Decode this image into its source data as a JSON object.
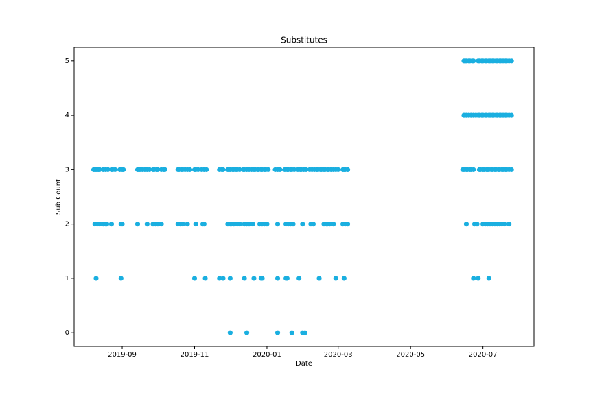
{
  "chart_data": {
    "type": "scatter",
    "title": "Substitutes",
    "x_label": "Date",
    "y_label": "Sub Count",
    "color": "#1aafe0",
    "x": [
      219,
      220,
      221,
      222,
      223,
      224,
      227,
      229,
      231,
      234,
      235,
      237,
      241,
      243,
      244,
      256,
      257,
      258,
      260,
      262,
      264,
      266,
      269,
      270,
      272,
      273,
      276,
      278,
      279,
      290,
      291,
      293,
      294,
      296,
      298,
      300,
      304,
      305,
      307,
      310,
      312,
      314,
      325,
      327,
      328,
      332,
      333,
      334,
      336,
      337,
      339,
      340,
      342,
      345,
      346,
      348,
      350,
      352,
      354,
      355,
      357,
      358,
      360,
      361,
      363,
      364,
      366,
      372,
      374,
      376,
      380,
      382,
      383,
      385,
      386,
      388,
      391,
      393,
      394,
      396,
      398,
      401,
      403,
      405,
      407,
      408,
      410,
      411,
      413,
      414,
      416,
      417,
      419,
      421,
      423,
      425,
      429,
      430,
      431,
      433,
      530,
      531,
      533,
      534,
      536,
      537,
      539,
      544,
      545,
      547,
      548,
      550,
      551,
      552,
      554,
      555,
      557,
      558,
      560,
      561,
      563,
      564,
      566,
      567,
      569,
      571,
      220,
      222,
      224,
      227,
      229,
      230,
      234,
      242,
      243,
      256,
      264,
      269,
      271,
      273,
      276,
      290,
      292,
      294,
      298,
      305,
      311,
      312,
      332,
      334,
      335,
      337,
      338,
      340,
      342,
      346,
      348,
      350,
      353,
      359,
      361,
      363,
      365,
      374,
      381,
      383,
      385,
      387,
      395,
      402,
      404,
      413,
      415,
      416,
      418,
      421,
      429,
      431,
      433,
      533,
      540,
      542,
      547,
      549,
      551,
      553,
      555,
      557,
      559,
      561,
      563,
      565,
      569,
      221,
      242,
      304,
      313,
      325,
      328,
      334,
      346,
      354,
      360,
      361,
      374,
      381,
      382,
      392,
      409,
      423,
      430,
      539,
      543,
      552,
      334,
      348,
      374,
      386,
      395,
      397,
      531,
      533,
      535,
      537,
      539,
      541,
      543,
      544,
      546,
      547,
      549,
      550,
      552,
      553,
      555,
      556,
      558,
      559,
      561,
      562,
      564,
      566,
      567,
      569,
      571,
      531,
      532,
      533,
      535,
      536,
      538,
      539,
      543,
      544,
      546,
      547,
      549,
      550,
      552,
      553,
      555,
      556,
      558,
      559,
      561,
      562,
      564,
      566,
      567,
      569,
      571
    ],
    "values": [
      3,
      3,
      3,
      3,
      3,
      3,
      3,
      3,
      3,
      3,
      3,
      3,
      3,
      3,
      3,
      3,
      3,
      3,
      3,
      3,
      3,
      3,
      3,
      3,
      3,
      3,
      3,
      3,
      3,
      3,
      3,
      3,
      3,
      3,
      3,
      3,
      3,
      3,
      3,
      3,
      3,
      3,
      3,
      3,
      3,
      3,
      3,
      3,
      3,
      3,
      3,
      3,
      3,
      3,
      3,
      3,
      3,
      3,
      3,
      3,
      3,
      3,
      3,
      3,
      3,
      3,
      3,
      3,
      3,
      3,
      3,
      3,
      3,
      3,
      3,
      3,
      3,
      3,
      3,
      3,
      3,
      3,
      3,
      3,
      3,
      3,
      3,
      3,
      3,
      3,
      3,
      3,
      3,
      3,
      3,
      3,
      3,
      3,
      3,
      3,
      3,
      3,
      3,
      3,
      3,
      3,
      3,
      3,
      3,
      3,
      3,
      3,
      3,
      3,
      3,
      3,
      3,
      3,
      3,
      3,
      3,
      3,
      3,
      3,
      3,
      3,
      2,
      2,
      2,
      2,
      2,
      2,
      2,
      2,
      2,
      2,
      2,
      2,
      2,
      2,
      2,
      2,
      2,
      2,
      2,
      2,
      2,
      2,
      2,
      2,
      2,
      2,
      2,
      2,
      2,
      2,
      2,
      2,
      2,
      2,
      2,
      2,
      2,
      2,
      2,
      2,
      2,
      2,
      2,
      2,
      2,
      2,
      2,
      2,
      2,
      2,
      2,
      2,
      2,
      2,
      2,
      2,
      2,
      2,
      2,
      2,
      2,
      2,
      2,
      2,
      2,
      2,
      2,
      1,
      1,
      1,
      1,
      1,
      1,
      1,
      1,
      1,
      1,
      1,
      1,
      1,
      1,
      1,
      1,
      1,
      1,
      1,
      1,
      1,
      0,
      0,
      0,
      0,
      0,
      0,
      4,
      4,
      4,
      4,
      4,
      4,
      4,
      4,
      4,
      4,
      4,
      4,
      4,
      4,
      4,
      4,
      4,
      4,
      4,
      4,
      4,
      4,
      4,
      4,
      4,
      5,
      5,
      5,
      5,
      5,
      5,
      5,
      5,
      5,
      5,
      5,
      5,
      5,
      5,
      5,
      5,
      5,
      5,
      5,
      5,
      5,
      5,
      5,
      5,
      5,
      5
    ],
    "xlim": [
      202.5,
      590
    ],
    "xticks": [
      {
        "value": 243,
        "label": "2019-09"
      },
      {
        "value": 304,
        "label": "2019-11"
      },
      {
        "value": 365,
        "label": "2020-01"
      },
      {
        "value": 425,
        "label": "2020-03"
      },
      {
        "value": 486,
        "label": "2020-05"
      },
      {
        "value": 547,
        "label": "2020-07"
      }
    ],
    "ylim": [
      -0.25,
      5.25
    ],
    "yticks": [
      0,
      1,
      2,
      3,
      4,
      5
    ]
  }
}
